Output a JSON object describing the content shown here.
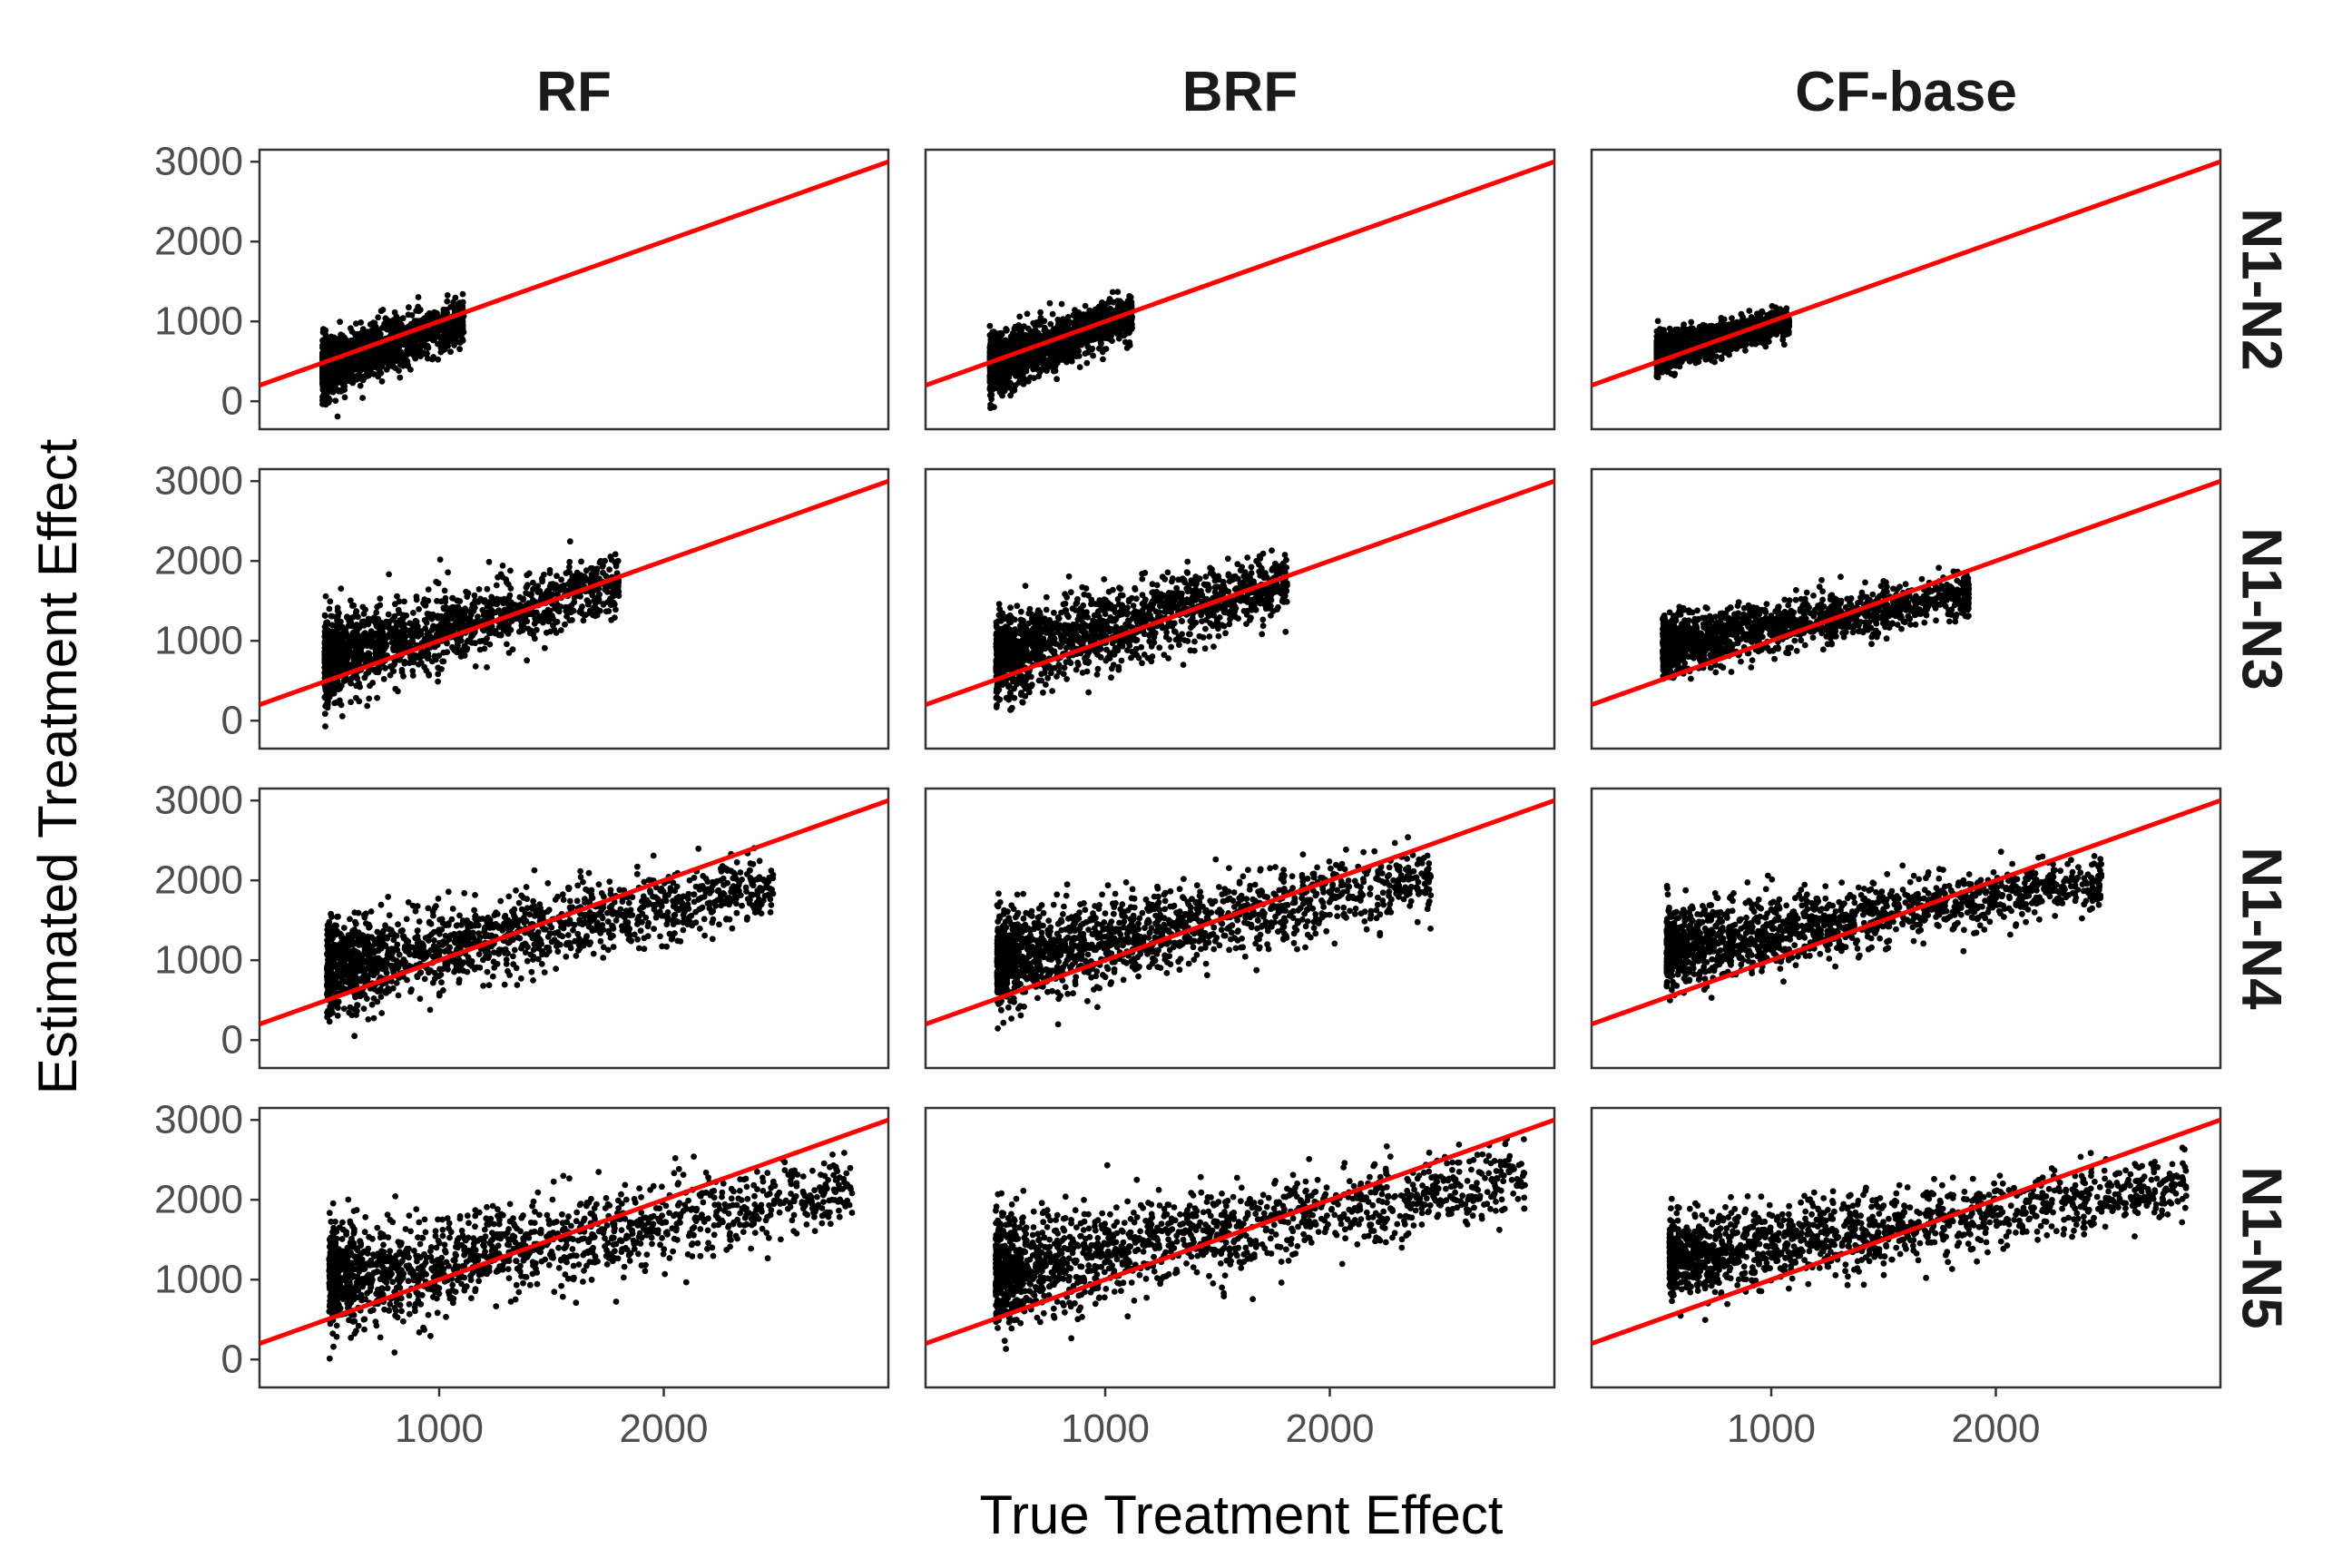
{
  "chart_data": {
    "type": "scatter",
    "layout": "facet_grid",
    "columns": [
      "RF",
      "BRF",
      "CF-base"
    ],
    "rows": [
      "N1-N2",
      "N1-N3",
      "N1-N4",
      "N1-N5"
    ],
    "xlabel": "True Treatment Effect",
    "ylabel": "Estimated Treatment Effect",
    "xlim": [
      200,
      3000
    ],
    "ylim": [
      -350,
      3150
    ],
    "xticks": [
      1000,
      2000
    ],
    "yticks": [
      0,
      1000,
      2000,
      3000
    ],
    "xtick_labels": [
      "1000",
      "2000"
    ],
    "ytick_labels": [
      "0",
      "1000",
      "2000",
      "3000"
    ],
    "reference_line": {
      "slope": 1,
      "intercept": 0,
      "color": "#ff0000"
    },
    "point_color": "#000000",
    "grid": false,
    "panels": [
      {
        "col": "RF",
        "row": "N1-N2",
        "x_range": [
          460,
          1110
        ],
        "y_range": [
          -300,
          1350
        ],
        "cloud_center": [
          700,
          570
        ],
        "approx_points": 1500
      },
      {
        "col": "BRF",
        "row": "N1-N2",
        "x_range": [
          460,
          1120
        ],
        "y_range": [
          -280,
          1420
        ],
        "cloud_center": [
          720,
          600
        ],
        "approx_points": 1500
      },
      {
        "col": "CF-base",
        "row": "N1-N2",
        "x_range": [
          460,
          1080
        ],
        "y_range": [
          180,
          1250
        ],
        "cloud_center": [
          720,
          650
        ],
        "approx_points": 1500
      },
      {
        "col": "RF",
        "row": "N1-N3",
        "x_range": [
          470,
          1800
        ],
        "y_range": [
          -200,
          2300
        ],
        "cloud_center": [
          900,
          900
        ],
        "approx_points": 1500
      },
      {
        "col": "BRF",
        "row": "N1-N3",
        "x_range": [
          480,
          1810
        ],
        "y_range": [
          -150,
          2300
        ],
        "cloud_center": [
          950,
          900
        ],
        "approx_points": 1500
      },
      {
        "col": "CF-base",
        "row": "N1-N3",
        "x_range": [
          470,
          1880
        ],
        "y_range": [
          250,
          1950
        ],
        "cloud_center": [
          1000,
          1050
        ],
        "approx_points": 1500
      },
      {
        "col": "RF",
        "row": "N1-N4",
        "x_range": [
          500,
          2490
        ],
        "y_range": [
          -100,
          2560
        ],
        "cloud_center": [
          1050,
          1000
        ],
        "approx_points": 1500
      },
      {
        "col": "BRF",
        "row": "N1-N4",
        "x_range": [
          500,
          2450
        ],
        "y_range": [
          -100,
          2650
        ],
        "cloud_center": [
          1100,
          1150
        ],
        "approx_points": 1500
      },
      {
        "col": "CF-base",
        "row": "N1-N4",
        "x_range": [
          500,
          2470
        ],
        "y_range": [
          300,
          2500
        ],
        "cloud_center": [
          1150,
          1250
        ],
        "approx_points": 1500
      },
      {
        "col": "RF",
        "row": "N1-N5",
        "x_range": [
          510,
          2850
        ],
        "y_range": [
          -100,
          2800
        ],
        "cloud_center": [
          1150,
          1150
        ],
        "approx_points": 1500
      },
      {
        "col": "BRF",
        "row": "N1-N5",
        "x_range": [
          500,
          2870
        ],
        "y_range": [
          -50,
          3000
        ],
        "cloud_center": [
          1200,
          1250
        ],
        "approx_points": 1500
      },
      {
        "col": "CF-base",
        "row": "N1-N5",
        "x_range": [
          520,
          2850
        ],
        "y_range": [
          300,
          2700
        ],
        "cloud_center": [
          1250,
          1450
        ],
        "approx_points": 1500
      }
    ]
  }
}
